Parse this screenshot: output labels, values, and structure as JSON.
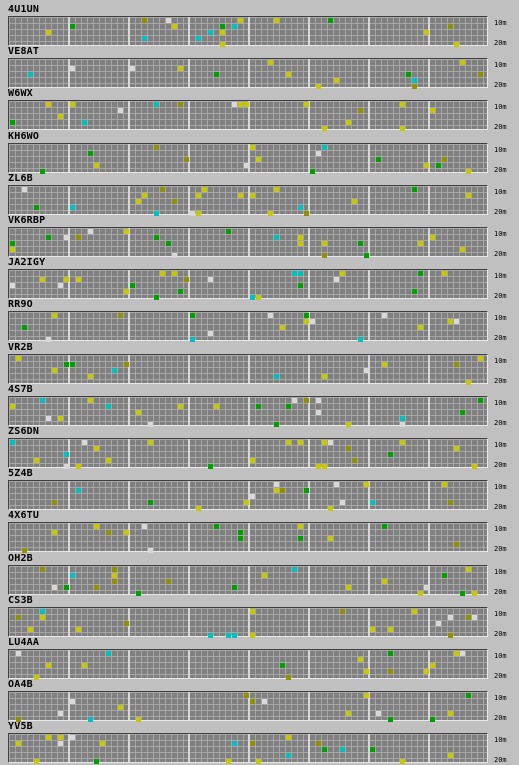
{
  "bands": {
    "top": "10m",
    "bottom": "20m"
  },
  "colors": {
    "grid": "#808080",
    "yellow": "#c8c800",
    "green": "#00a000",
    "cyan": "#00c0c0",
    "white": "#d8d8d8",
    "olive": "#909000"
  },
  "beacons": [
    {
      "callsign": "4U1UN"
    },
    {
      "callsign": "VE8AT"
    },
    {
      "callsign": "W6WX"
    },
    {
      "callsign": "KH6WO"
    },
    {
      "callsign": "ZL6B"
    },
    {
      "callsign": "VK6RBP"
    },
    {
      "callsign": "JA2IGY"
    },
    {
      "callsign": "RR9O"
    },
    {
      "callsign": "VR2B"
    },
    {
      "callsign": "4S7B"
    },
    {
      "callsign": "ZS6DN"
    },
    {
      "callsign": "5Z4B"
    },
    {
      "callsign": "4X6TU"
    },
    {
      "callsign": "OH2B"
    },
    {
      "callsign": "CS3B"
    },
    {
      "callsign": "LU4AA"
    },
    {
      "callsign": "OA4B"
    },
    {
      "callsign": "YV5B"
    }
  ]
}
